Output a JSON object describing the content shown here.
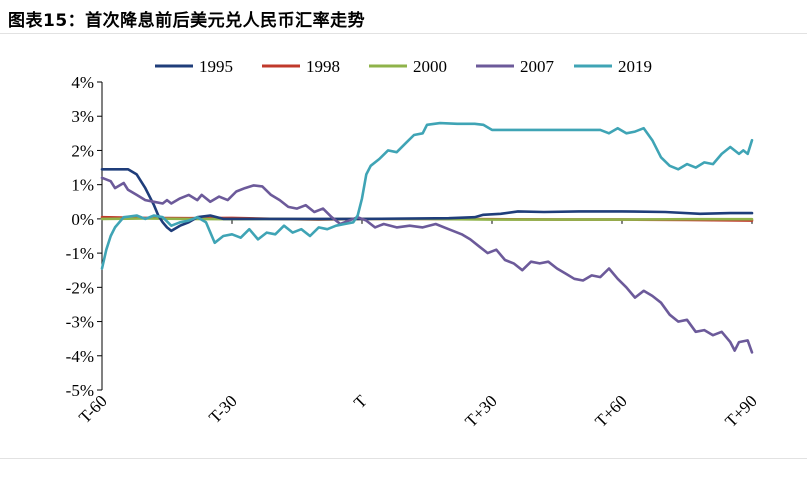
{
  "title": "图表15：首次降息前后美元兑人民币汇率走势",
  "chart_data": {
    "type": "line",
    "title": "图表15：首次降息前后美元兑人民币汇率走势",
    "xlabel": "",
    "ylabel": "",
    "x_tick_labels": [
      "T-60",
      "T-30",
      "T",
      "T+30",
      "T+60",
      "T+90"
    ],
    "x_ticks": [
      -60,
      -30,
      0,
      30,
      60,
      90
    ],
    "xlim": [
      -60,
      90
    ],
    "y_tick_labels": [
      "4%",
      "3%",
      "2%",
      "1%",
      "0%",
      "-1%",
      "-2%",
      "-3%",
      "-4%",
      "-5%"
    ],
    "y_ticks": [
      4,
      3,
      2,
      1,
      0,
      -1,
      -2,
      -3,
      -4,
      -5
    ],
    "ylim": [
      -5,
      4
    ],
    "y_unit": "%",
    "grid": false,
    "legend_position": "top",
    "series": [
      {
        "name": "1995",
        "color": "#1f3d7a",
        "points": [
          [
            -60,
            1.45
          ],
          [
            -54,
            1.45
          ],
          [
            -52,
            1.3
          ],
          [
            -50,
            0.9
          ],
          [
            -48,
            0.4
          ],
          [
            -47,
            0.1
          ],
          [
            -46,
            -0.1
          ],
          [
            -45,
            -0.25
          ],
          [
            -44,
            -0.35
          ],
          [
            -42,
            -0.2
          ],
          [
            -40,
            -0.1
          ],
          [
            -38,
            0.05
          ],
          [
            -35,
            0.1
          ],
          [
            -32,
            0.0
          ],
          [
            -25,
            0.0
          ],
          [
            -10,
            0.0
          ],
          [
            0,
            0.0
          ],
          [
            20,
            0.02
          ],
          [
            26,
            0.05
          ],
          [
            28,
            0.12
          ],
          [
            32,
            0.15
          ],
          [
            36,
            0.22
          ],
          [
            42,
            0.2
          ],
          [
            50,
            0.22
          ],
          [
            60,
            0.22
          ],
          [
            70,
            0.2
          ],
          [
            78,
            0.15
          ],
          [
            85,
            0.17
          ],
          [
            90,
            0.17
          ]
        ]
      },
      {
        "name": "1998",
        "color": "#c0392b",
        "points": [
          [
            -60,
            0.05
          ],
          [
            -50,
            0.03
          ],
          [
            -40,
            0.02
          ],
          [
            -30,
            0.03
          ],
          [
            -20,
            0.0
          ],
          [
            -10,
            -0.02
          ],
          [
            0,
            0.0
          ],
          [
            15,
            0.0
          ],
          [
            30,
            -0.01
          ],
          [
            45,
            -0.02
          ],
          [
            60,
            -0.02
          ],
          [
            75,
            -0.03
          ],
          [
            90,
            -0.05
          ]
        ]
      },
      {
        "name": "2000",
        "color": "#8fb34a",
        "points": [
          [
            -60,
            0.0
          ],
          [
            -50,
            0.01
          ],
          [
            -40,
            0.0
          ],
          [
            -30,
            -0.01
          ],
          [
            -20,
            0.0
          ],
          [
            -10,
            -0.01
          ],
          [
            0,
            0.0
          ],
          [
            15,
            0.0
          ],
          [
            30,
            -0.02
          ],
          [
            45,
            -0.02
          ],
          [
            60,
            -0.02
          ],
          [
            75,
            -0.01
          ],
          [
            90,
            -0.01
          ]
        ]
      },
      {
        "name": "2007",
        "color": "#6c5a9a",
        "points": [
          [
            -60,
            1.2
          ],
          [
            -58,
            1.1
          ],
          [
            -57,
            0.9
          ],
          [
            -55,
            1.05
          ],
          [
            -54,
            0.85
          ],
          [
            -52,
            0.7
          ],
          [
            -50,
            0.55
          ],
          [
            -48,
            0.5
          ],
          [
            -46,
            0.45
          ],
          [
            -45,
            0.55
          ],
          [
            -44,
            0.45
          ],
          [
            -42,
            0.6
          ],
          [
            -40,
            0.7
          ],
          [
            -38,
            0.55
          ],
          [
            -37,
            0.7
          ],
          [
            -35,
            0.5
          ],
          [
            -33,
            0.65
          ],
          [
            -31,
            0.55
          ],
          [
            -29,
            0.8
          ],
          [
            -27,
            0.9
          ],
          [
            -25,
            0.98
          ],
          [
            -23,
            0.95
          ],
          [
            -21,
            0.7
          ],
          [
            -19,
            0.55
          ],
          [
            -17,
            0.35
          ],
          [
            -15,
            0.3
          ],
          [
            -13,
            0.4
          ],
          [
            -11,
            0.2
          ],
          [
            -9,
            0.3
          ],
          [
            -7,
            0.05
          ],
          [
            -5,
            -0.15
          ],
          [
            -3,
            -0.05
          ],
          [
            -1,
            0.05
          ],
          [
            1,
            -0.05
          ],
          [
            3,
            -0.25
          ],
          [
            5,
            -0.15
          ],
          [
            8,
            -0.25
          ],
          [
            11,
            -0.2
          ],
          [
            14,
            -0.25
          ],
          [
            17,
            -0.15
          ],
          [
            20,
            -0.3
          ],
          [
            23,
            -0.45
          ],
          [
            25,
            -0.6
          ],
          [
            27,
            -0.8
          ],
          [
            29,
            -1.0
          ],
          [
            31,
            -0.9
          ],
          [
            33,
            -1.2
          ],
          [
            35,
            -1.3
          ],
          [
            37,
            -1.5
          ],
          [
            39,
            -1.25
          ],
          [
            41,
            -1.3
          ],
          [
            43,
            -1.25
          ],
          [
            45,
            -1.45
          ],
          [
            47,
            -1.6
          ],
          [
            49,
            -1.75
          ],
          [
            51,
            -1.8
          ],
          [
            53,
            -1.65
          ],
          [
            55,
            -1.7
          ],
          [
            57,
            -1.45
          ],
          [
            59,
            -1.75
          ],
          [
            61,
            -2.0
          ],
          [
            63,
            -2.3
          ],
          [
            65,
            -2.1
          ],
          [
            67,
            -2.25
          ],
          [
            69,
            -2.45
          ],
          [
            71,
            -2.8
          ],
          [
            73,
            -3.0
          ],
          [
            75,
            -2.95
          ],
          [
            77,
            -3.3
          ],
          [
            79,
            -3.25
          ],
          [
            81,
            -3.4
          ],
          [
            83,
            -3.3
          ],
          [
            85,
            -3.6
          ],
          [
            86,
            -3.85
          ],
          [
            87,
            -3.6
          ],
          [
            89,
            -3.55
          ],
          [
            90,
            -3.9
          ]
        ]
      },
      {
        "name": "2019",
        "color": "#3fa4b5",
        "points": [
          [
            -60,
            -1.45
          ],
          [
            -59,
            -0.9
          ],
          [
            -58,
            -0.5
          ],
          [
            -57,
            -0.25
          ],
          [
            -55,
            0.05
          ],
          [
            -52,
            0.1
          ],
          [
            -50,
            0.0
          ],
          [
            -48,
            0.1
          ],
          [
            -46,
            0.05
          ],
          [
            -44,
            -0.2
          ],
          [
            -42,
            -0.1
          ],
          [
            -40,
            -0.05
          ],
          [
            -38,
            0.05
          ],
          [
            -36,
            -0.1
          ],
          [
            -34,
            -0.7
          ],
          [
            -32,
            -0.5
          ],
          [
            -30,
            -0.45
          ],
          [
            -28,
            -0.55
          ],
          [
            -26,
            -0.3
          ],
          [
            -24,
            -0.6
          ],
          [
            -22,
            -0.4
          ],
          [
            -20,
            -0.45
          ],
          [
            -18,
            -0.2
          ],
          [
            -16,
            -0.4
          ],
          [
            -14,
            -0.3
          ],
          [
            -12,
            -0.5
          ],
          [
            -10,
            -0.25
          ],
          [
            -8,
            -0.3
          ],
          [
            -6,
            -0.2
          ],
          [
            -4,
            -0.15
          ],
          [
            -2,
            -0.1
          ],
          [
            -1,
            0.1
          ],
          [
            0,
            0.6
          ],
          [
            1,
            1.3
          ],
          [
            2,
            1.55
          ],
          [
            4,
            1.75
          ],
          [
            6,
            2.0
          ],
          [
            8,
            1.95
          ],
          [
            10,
            2.2
          ],
          [
            12,
            2.45
          ],
          [
            14,
            2.5
          ],
          [
            15,
            2.75
          ],
          [
            18,
            2.8
          ],
          [
            22,
            2.78
          ],
          [
            26,
            2.78
          ],
          [
            28,
            2.75
          ],
          [
            30,
            2.6
          ],
          [
            32,
            2.6
          ],
          [
            40,
            2.6
          ],
          [
            50,
            2.6
          ],
          [
            55,
            2.6
          ],
          [
            57,
            2.5
          ],
          [
            59,
            2.65
          ],
          [
            61,
            2.5
          ],
          [
            63,
            2.55
          ],
          [
            65,
            2.65
          ],
          [
            67,
            2.3
          ],
          [
            69,
            1.8
          ],
          [
            71,
            1.55
          ],
          [
            73,
            1.45
          ],
          [
            75,
            1.6
          ],
          [
            77,
            1.5
          ],
          [
            79,
            1.65
          ],
          [
            81,
            1.6
          ],
          [
            83,
            1.9
          ],
          [
            85,
            2.1
          ],
          [
            87,
            1.9
          ],
          [
            88,
            2.0
          ],
          [
            89,
            1.9
          ],
          [
            90,
            2.3
          ]
        ]
      }
    ]
  }
}
